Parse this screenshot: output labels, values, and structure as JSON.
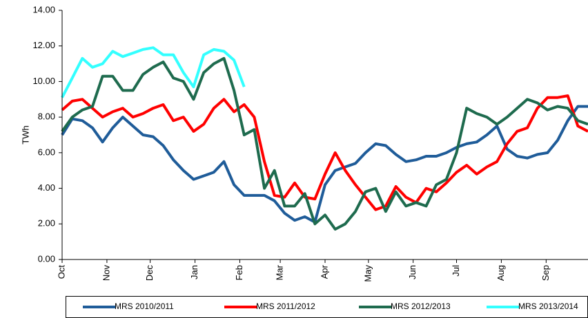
{
  "chart_data": {
    "type": "line",
    "ylabel": "TWh",
    "x": [
      0,
      1,
      2,
      3,
      4,
      5,
      6,
      7,
      8,
      9,
      10,
      11,
      12,
      13,
      14,
      15,
      16,
      17,
      18,
      19,
      20,
      21,
      22,
      23,
      24,
      25,
      26,
      27,
      28,
      29,
      30,
      31,
      32,
      33,
      34,
      35,
      36,
      37,
      38,
      39,
      40,
      41,
      42,
      43,
      44,
      45,
      46,
      47,
      48,
      49,
      50,
      51,
      52
    ],
    "xlim": [
      0,
      52
    ],
    "xticks": [
      {
        "value": 0,
        "label": "Oct"
      },
      {
        "value": 4.43,
        "label": "Nov"
      },
      {
        "value": 8.71,
        "label": "Dec"
      },
      {
        "value": 13.14,
        "label": "Jan"
      },
      {
        "value": 17.57,
        "label": "Feb"
      },
      {
        "value": 21.57,
        "label": "Mar"
      },
      {
        "value": 26,
        "label": "Apr"
      },
      {
        "value": 30.29,
        "label": "May"
      },
      {
        "value": 34.71,
        "label": "Jun"
      },
      {
        "value": 39,
        "label": "Jul"
      },
      {
        "value": 43.43,
        "label": "Aug"
      },
      {
        "value": 47.86,
        "label": "Sep"
      }
    ],
    "ylim": [
      0,
      14
    ],
    "yticks": [
      {
        "value": 0,
        "label": "0.00"
      },
      {
        "value": 2,
        "label": "2.00"
      },
      {
        "value": 4,
        "label": "4.00"
      },
      {
        "value": 6,
        "label": "6.00"
      },
      {
        "value": 8,
        "label": "8.00"
      },
      {
        "value": 10,
        "label": "10.00"
      },
      {
        "value": 12,
        "label": "12.00"
      },
      {
        "value": 14,
        "label": "14.00"
      }
    ],
    "grid": false,
    "legend": "bottom",
    "series": [
      {
        "name": "MRS 2010/2011",
        "color": "#1f5c99",
        "values": [
          7.0,
          7.9,
          7.8,
          7.4,
          6.6,
          7.4,
          8.0,
          7.5,
          7.0,
          6.9,
          6.4,
          5.6,
          5.0,
          4.5,
          4.7,
          4.9,
          5.5,
          4.2,
          3.6,
          3.6,
          3.6,
          3.3,
          2.6,
          2.2,
          2.4,
          2.1,
          4.2,
          5.0,
          5.2,
          5.4,
          6.0,
          6.5,
          6.4,
          5.9,
          5.5,
          5.6,
          5.8,
          5.8,
          6.0,
          6.3,
          6.5,
          6.6,
          7.0,
          7.5,
          6.2,
          5.8,
          5.7,
          5.9,
          6.0,
          6.7,
          7.8,
          8.6,
          8.6
        ]
      },
      {
        "name": "MRS 2011/2012",
        "color": "#ff0000",
        "values": [
          8.4,
          8.9,
          9.0,
          8.5,
          8.0,
          8.3,
          8.5,
          8.0,
          8.2,
          8.5,
          8.7,
          7.8,
          8.0,
          7.2,
          7.6,
          8.5,
          9.0,
          8.3,
          8.7,
          8.0,
          5.5,
          3.6,
          3.5,
          4.3,
          3.5,
          3.4,
          4.8,
          6.0,
          5.0,
          4.2,
          3.5,
          2.8,
          3.0,
          4.1,
          3.5,
          3.2,
          4.0,
          3.8,
          4.3,
          4.9,
          5.3,
          4.8,
          5.2,
          5.5,
          6.5,
          7.2,
          7.4,
          8.5,
          9.1,
          9.1,
          9.2,
          7.5,
          7.2
        ]
      },
      {
        "name": "MRS 2012/2013",
        "color": "#1e6b4e",
        "values": [
          7.2,
          8.0,
          8.4,
          8.6,
          10.3,
          10.3,
          9.5,
          9.5,
          10.4,
          10.8,
          11.1,
          10.2,
          10.0,
          9.0,
          10.5,
          11.0,
          11.3,
          9.5,
          7.0,
          7.3,
          4.0,
          5.0,
          3.0,
          3.0,
          3.7,
          2.0,
          2.5,
          1.7,
          2.0,
          2.7,
          3.8,
          4.0,
          2.7,
          3.8,
          3.0,
          3.2,
          3.0,
          4.2,
          4.5,
          6.0,
          8.5,
          8.2,
          8.0,
          7.6,
          8.0,
          8.5,
          9.0,
          8.8,
          8.4,
          8.6,
          8.5,
          7.8,
          7.6
        ]
      },
      {
        "name": "MRS 2013/2014",
        "color": "#33ffff",
        "values": [
          9.1,
          10.2,
          11.3,
          10.8,
          11.0,
          11.7,
          11.4,
          11.6,
          11.8,
          11.9,
          11.5,
          11.5,
          10.5,
          9.7,
          11.5,
          11.8,
          11.7,
          11.2,
          9.7,
          null,
          null,
          null,
          null,
          null,
          null,
          null,
          null,
          null,
          null,
          null,
          null,
          null,
          null,
          null,
          null,
          null,
          null,
          null,
          null,
          null,
          null,
          null,
          null,
          null,
          null,
          null,
          null,
          null,
          null,
          null,
          null,
          null,
          null
        ]
      }
    ]
  }
}
